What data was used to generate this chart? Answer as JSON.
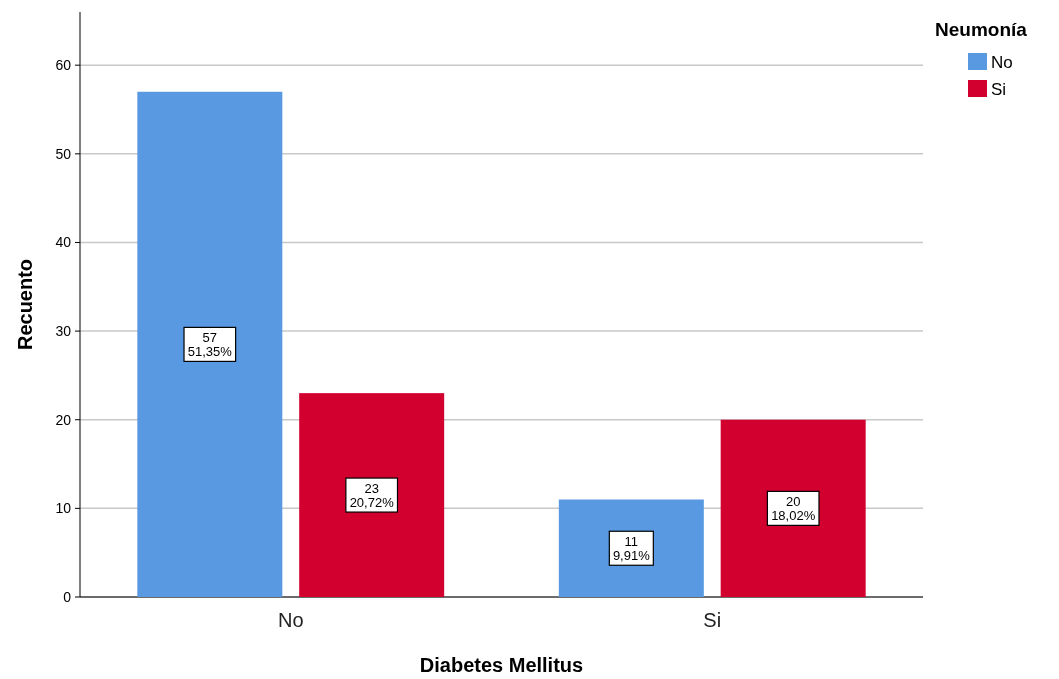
{
  "chart_data": {
    "type": "bar",
    "xlabel": "Diabetes Mellitus",
    "ylabel": "Recuento",
    "legend_title": "Neumonía",
    "categories": [
      "No",
      "Si"
    ],
    "series": [
      {
        "name": "No",
        "color": "#5899e2",
        "values": [
          57,
          11
        ],
        "value_labels": [
          "57\n51,35%",
          "11\n9,91%"
        ]
      },
      {
        "name": "Si",
        "color": "#d2002e",
        "values": [
          23,
          20
        ],
        "value_labels": [
          "23\n20,72%",
          "20\n18,02%"
        ]
      }
    ],
    "ylim": [
      0,
      66
    ],
    "yticks": [
      0,
      10,
      20,
      30,
      40,
      50,
      60
    ],
    "grid": "y",
    "legend": "top right"
  }
}
